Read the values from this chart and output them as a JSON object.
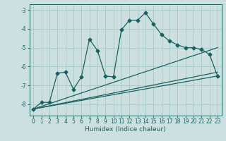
{
  "xlabel": "Humidex (Indice chaleur)",
  "xlim": [
    -0.5,
    23.5
  ],
  "ylim": [
    -8.6,
    -2.7
  ],
  "yticks": [
    -8,
    -7,
    -6,
    -5,
    -4,
    -3
  ],
  "xticks": [
    0,
    1,
    2,
    3,
    4,
    5,
    6,
    7,
    8,
    9,
    10,
    11,
    12,
    13,
    14,
    15,
    16,
    17,
    18,
    19,
    20,
    21,
    22,
    23
  ],
  "bg_color": "#cce0e0",
  "grid_color": "#aacccc",
  "line_color": "#1a6060",
  "main_line": {
    "x": [
      0,
      1,
      2,
      3,
      4,
      5,
      6,
      7,
      8,
      9,
      10,
      11,
      12,
      13,
      14,
      15,
      16,
      17,
      18,
      19,
      20,
      21,
      22,
      23
    ],
    "y": [
      -8.25,
      -7.9,
      -7.9,
      -6.35,
      -6.3,
      -7.2,
      -6.55,
      -4.55,
      -5.15,
      -6.5,
      -6.55,
      -4.05,
      -3.55,
      -3.55,
      -3.15,
      -3.75,
      -4.3,
      -4.65,
      -4.85,
      -5.0,
      -5.0,
      -5.1,
      -5.35,
      -6.5
    ]
  },
  "straight_lines": [
    {
      "x0": 0,
      "y0": -8.25,
      "x1": 23,
      "y1": -6.5
    },
    {
      "x0": 0,
      "y0": -8.25,
      "x1": 23,
      "y1": -6.3
    },
    {
      "x0": 0,
      "y0": -8.25,
      "x1": 23,
      "y1": -5.0
    }
  ]
}
